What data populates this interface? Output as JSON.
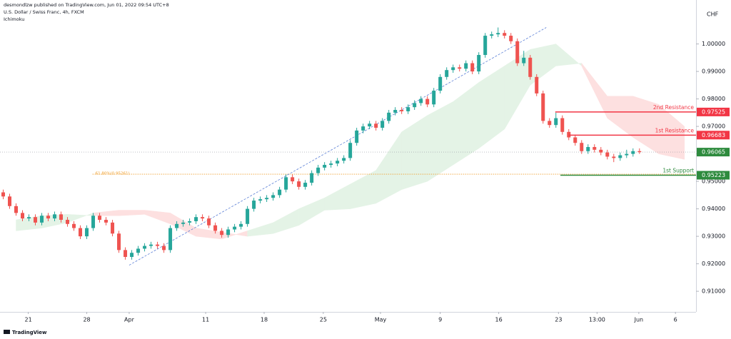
{
  "chart_data": {
    "type": "candlestick",
    "header": [
      "desmondlzw published on TradingView.com, Jun 01, 2022 09:54 UTC+8",
      "U.S. Dollar / Swiss Franc, 4h, FXCM",
      "Ichimoku"
    ],
    "y_axis_label": "CHF",
    "footer": "TradingView",
    "up_color": "#26a69a",
    "down_color": "#ef5350",
    "ylim": [
      0.9025,
      1.016
    ],
    "yticks": [
      {
        "value": 0.91,
        "label": "0.91000"
      },
      {
        "value": 0.92,
        "label": "0.92000"
      },
      {
        "value": 0.93,
        "label": "0.93000"
      },
      {
        "value": 0.94,
        "label": "0.94000"
      },
      {
        "value": 0.95,
        "label": "0.95000"
      },
      {
        "value": 0.96,
        "label": "0.96000"
      },
      {
        "value": 0.97,
        "label": "0.97000"
      },
      {
        "value": 0.98,
        "label": "0.98000"
      },
      {
        "value": 0.99,
        "label": "0.99000"
      },
      {
        "value": 1.0,
        "label": "1.00000"
      }
    ],
    "xlim": [
      -0.5,
      107.8
    ],
    "xticks": [
      {
        "value": 3.9,
        "label": "21"
      },
      {
        "value": 13,
        "label": "28"
      },
      {
        "value": 19.6,
        "label": "Apr"
      },
      {
        "value": 31.5,
        "label": "11"
      },
      {
        "value": 40.6,
        "label": "18"
      },
      {
        "value": 49.8,
        "label": "25"
      },
      {
        "value": 58.7,
        "label": "May"
      },
      {
        "value": 68,
        "label": "9"
      },
      {
        "value": 77.1,
        "label": "16"
      },
      {
        "value": 86.4,
        "label": "23"
      },
      {
        "value": 92.4,
        "label": "13:00"
      },
      {
        "value": 98.9,
        "label": "Jun"
      },
      {
        "value": 104.6,
        "label": "6"
      }
    ],
    "ohlc": [
      [
        0.946,
        0.947,
        0.9435,
        0.9445
      ],
      [
        0.9445,
        0.9455,
        0.94,
        0.941
      ],
      [
        0.941,
        0.942,
        0.9375,
        0.9385
      ],
      [
        0.9385,
        0.9395,
        0.9355,
        0.9365
      ],
      [
        0.9365,
        0.938,
        0.9355,
        0.937
      ],
      [
        0.937,
        0.938,
        0.934,
        0.935
      ],
      [
        0.935,
        0.9385,
        0.934,
        0.9375
      ],
      [
        0.9375,
        0.9385,
        0.9355,
        0.9365
      ],
      [
        0.9365,
        0.939,
        0.9355,
        0.938
      ],
      [
        0.938,
        0.939,
        0.935,
        0.936
      ],
      [
        0.936,
        0.937,
        0.9335,
        0.9345
      ],
      [
        0.9345,
        0.9355,
        0.932,
        0.933
      ],
      [
        0.933,
        0.934,
        0.929,
        0.93
      ],
      [
        0.93,
        0.934,
        0.929,
        0.933
      ],
      [
        0.933,
        0.9385,
        0.932,
        0.9375
      ],
      [
        0.9375,
        0.9385,
        0.935,
        0.936
      ],
      [
        0.936,
        0.937,
        0.934,
        0.935
      ],
      [
        0.935,
        0.936,
        0.93,
        0.931
      ],
      [
        0.931,
        0.932,
        0.924,
        0.925
      ],
      [
        0.925,
        0.926,
        0.9215,
        0.9225
      ],
      [
        0.9225,
        0.925,
        0.9215,
        0.924
      ],
      [
        0.924,
        0.9265,
        0.923,
        0.9255
      ],
      [
        0.9255,
        0.9275,
        0.9245,
        0.9265
      ],
      [
        0.9265,
        0.928,
        0.9255,
        0.927
      ],
      [
        0.927,
        0.928,
        0.9255,
        0.9265
      ],
      [
        0.9265,
        0.9275,
        0.924,
        0.925
      ],
      [
        0.925,
        0.934,
        0.924,
        0.933
      ],
      [
        0.933,
        0.9355,
        0.932,
        0.9345
      ],
      [
        0.9345,
        0.936,
        0.9335,
        0.935
      ],
      [
        0.935,
        0.9365,
        0.934,
        0.9355
      ],
      [
        0.9355,
        0.938,
        0.9345,
        0.937
      ],
      [
        0.937,
        0.938,
        0.9355,
        0.9365
      ],
      [
        0.9365,
        0.9375,
        0.933,
        0.934
      ],
      [
        0.934,
        0.935,
        0.931,
        0.932
      ],
      [
        0.932,
        0.933,
        0.9295,
        0.9305
      ],
      [
        0.9305,
        0.9335,
        0.9295,
        0.9325
      ],
      [
        0.9325,
        0.9345,
        0.9315,
        0.9335
      ],
      [
        0.9335,
        0.9355,
        0.9325,
        0.9345
      ],
      [
        0.9345,
        0.941,
        0.9335,
        0.94
      ],
      [
        0.94,
        0.944,
        0.939,
        0.943
      ],
      [
        0.943,
        0.9445,
        0.942,
        0.9435
      ],
      [
        0.9435,
        0.945,
        0.9425,
        0.944
      ],
      [
        0.944,
        0.946,
        0.943,
        0.945
      ],
      [
        0.945,
        0.948,
        0.944,
        0.947
      ],
      [
        0.947,
        0.9525,
        0.946,
        0.9515
      ],
      [
        0.9515,
        0.9525,
        0.949,
        0.95
      ],
      [
        0.95,
        0.951,
        0.947,
        0.948
      ],
      [
        0.948,
        0.9505,
        0.947,
        0.9495
      ],
      [
        0.9495,
        0.954,
        0.9485,
        0.953
      ],
      [
        0.953,
        0.956,
        0.952,
        0.955
      ],
      [
        0.955,
        0.957,
        0.954,
        0.956
      ],
      [
        0.956,
        0.9575,
        0.955,
        0.9565
      ],
      [
        0.9565,
        0.9585,
        0.9555,
        0.9575
      ],
      [
        0.9575,
        0.9595,
        0.9565,
        0.9585
      ],
      [
        0.9585,
        0.965,
        0.9575,
        0.964
      ],
      [
        0.964,
        0.9695,
        0.963,
        0.9685
      ],
      [
        0.9685,
        0.971,
        0.9675,
        0.97
      ],
      [
        0.97,
        0.972,
        0.969,
        0.971
      ],
      [
        0.971,
        0.972,
        0.9685,
        0.9695
      ],
      [
        0.9695,
        0.973,
        0.9685,
        0.972
      ],
      [
        0.972,
        0.976,
        0.971,
        0.975
      ],
      [
        0.975,
        0.977,
        0.974,
        0.976
      ],
      [
        0.976,
        0.977,
        0.9745,
        0.9755
      ],
      [
        0.9755,
        0.978,
        0.9745,
        0.977
      ],
      [
        0.977,
        0.9795,
        0.976,
        0.9785
      ],
      [
        0.9785,
        0.981,
        0.9775,
        0.98
      ],
      [
        0.98,
        0.981,
        0.977,
        0.978
      ],
      [
        0.978,
        0.984,
        0.977,
        0.983
      ],
      [
        0.983,
        0.989,
        0.982,
        0.988
      ],
      [
        0.988,
        0.9915,
        0.987,
        0.9905
      ],
      [
        0.9905,
        0.9925,
        0.9895,
        0.9915
      ],
      [
        0.9915,
        0.9925,
        0.99,
        0.991
      ],
      [
        0.991,
        0.994,
        0.99,
        0.993
      ],
      [
        0.993,
        0.994,
        0.989,
        0.99
      ],
      [
        0.99,
        0.997,
        0.989,
        0.996
      ],
      [
        0.996,
        1.004,
        0.995,
        1.003
      ],
      [
        1.003,
        1.0045,
        1.002,
        1.0035
      ],
      [
        1.0035,
        1.006,
        1.0025,
        1.004
      ],
      [
        1.004,
        1.005,
        1.002,
        1.003
      ],
      [
        1.003,
        1.004,
        1.0,
        1.001
      ],
      [
        1.001,
        1.002,
        0.992,
        0.993
      ],
      [
        0.993,
        0.9975,
        0.992,
        0.995
      ],
      [
        0.995,
        0.996,
        0.987,
        0.988
      ],
      [
        0.988,
        0.989,
        0.981,
        0.982
      ],
      [
        0.982,
        0.983,
        0.971,
        0.972
      ],
      [
        0.972,
        0.973,
        0.9695,
        0.9705
      ],
      [
        0.9705,
        0.975,
        0.9695,
        0.973
      ],
      [
        0.973,
        0.974,
        0.967,
        0.968
      ],
      [
        0.968,
        0.969,
        0.965,
        0.966
      ],
      [
        0.966,
        0.967,
        0.963,
        0.964
      ],
      [
        0.964,
        0.965,
        0.96,
        0.961
      ],
      [
        0.961,
        0.9635,
        0.96,
        0.9625
      ],
      [
        0.9625,
        0.9635,
        0.9605,
        0.9615
      ],
      [
        0.9615,
        0.9625,
        0.9595,
        0.9605
      ],
      [
        0.9605,
        0.9615,
        0.958,
        0.959
      ],
      [
        0.959,
        0.96,
        0.957,
        0.9585
      ],
      [
        0.9585,
        0.9605,
        0.9575,
        0.9595
      ],
      [
        0.9595,
        0.9615,
        0.9585,
        0.96
      ],
      [
        0.96,
        0.962,
        0.959,
        0.961
      ],
      [
        0.961,
        0.962,
        0.96,
        0.96065
      ]
    ],
    "cloud": {
      "x": [
        2,
        6,
        10,
        14,
        18,
        22,
        26,
        30,
        34,
        38,
        42,
        46,
        50,
        54,
        58,
        62,
        66,
        70,
        74,
        78,
        82,
        86,
        90,
        94,
        98,
        102,
        106
      ],
      "span_a": [
        0.936,
        0.9375,
        0.938,
        0.9375,
        0.9375,
        0.938,
        0.9345,
        0.93,
        0.929,
        0.932,
        0.935,
        0.94,
        0.944,
        0.949,
        0.954,
        0.968,
        0.974,
        0.979,
        0.986,
        0.992,
        0.998,
        1.0,
        0.992,
        0.973,
        0.966,
        0.96,
        0.958
      ],
      "span_b": [
        0.932,
        0.933,
        0.935,
        0.9385,
        0.9395,
        0.9395,
        0.9385,
        0.933,
        0.9315,
        0.93,
        0.931,
        0.934,
        0.9395,
        0.94,
        0.942,
        0.947,
        0.95,
        0.956,
        0.962,
        0.969,
        0.985,
        0.992,
        0.993,
        0.981,
        0.981,
        0.978,
        0.97
      ],
      "up_color": "#e4f3e6",
      "down_color": "#fde0e0"
    },
    "trendline": {
      "x": [
        19.6,
        84.5
      ],
      "y": [
        0.9195,
        1.006
      ],
      "color": "#5b7fd6"
    },
    "fib": {
      "x": 13.9,
      "level": {
        "value": 0.95261,
        "label": "61.80%(0.95261)"
      },
      "color": "#f0a030"
    },
    "levels": [
      {
        "label": "2nd Resistance",
        "value": 0.97525,
        "x": 85.9,
        "color": "#f23645"
      },
      {
        "label": "1st Resistance",
        "value": 0.96683,
        "x": 88,
        "color": "#f23645"
      },
      {
        "label": "1st Support",
        "value": 0.95223,
        "x": 86.7,
        "color": "#2e8b3e"
      }
    ],
    "last_price": 0.96065,
    "last_color": "#2e8b3e"
  }
}
